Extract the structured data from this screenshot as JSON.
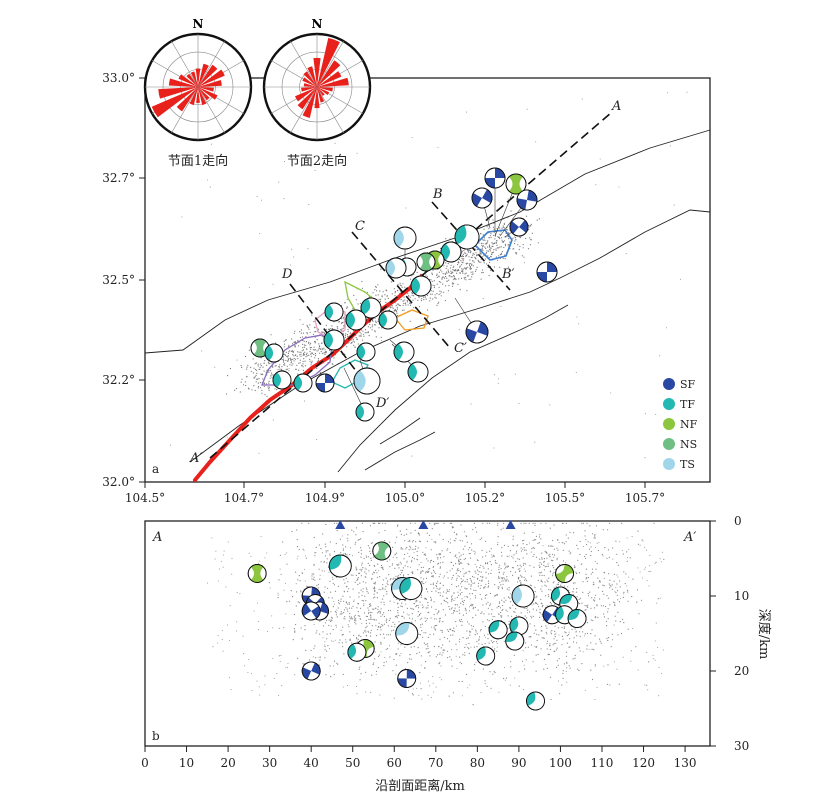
{
  "chart_data": [
    {
      "type": "map",
      "panel": "a",
      "x_ticks": [
        "104.5°",
        "104.7°",
        "104.9°",
        "105.0°",
        "105.2°",
        "105.5°",
        "105.7°"
      ],
      "y_ticks": [
        "33.0°",
        "32.7°",
        "32.5°",
        "32.2°",
        "32.0°"
      ],
      "profiles": [
        {
          "start": "A",
          "end": "A′"
        },
        {
          "start": "B",
          "end": "B′"
        },
        {
          "start": "C",
          "end": "C′"
        },
        {
          "start": "D",
          "end": "D′"
        }
      ],
      "rose_diagrams": [
        {
          "north": "N",
          "caption": "节面1走向",
          "petals": [
            {
              "az": 0,
              "r": 0.35
            },
            {
              "az": 20,
              "r": 0.45
            },
            {
              "az": 40,
              "r": 0.5
            },
            {
              "az": 60,
              "r": 0.55
            },
            {
              "az": 80,
              "r": 0.45
            },
            {
              "az": 100,
              "r": 0.3
            },
            {
              "az": 120,
              "r": 0.4
            },
            {
              "az": 140,
              "r": 0.3
            },
            {
              "az": 160,
              "r": 0.35
            },
            {
              "az": 180,
              "r": 0.3
            },
            {
              "az": 200,
              "r": 0.35
            },
            {
              "az": 220,
              "r": 0.55
            },
            {
              "az": 240,
              "r": 0.95
            },
            {
              "az": 260,
              "r": 0.75
            },
            {
              "az": 280,
              "r": 0.55
            },
            {
              "az": 300,
              "r": 0.4
            },
            {
              "az": 320,
              "r": 0.3
            },
            {
              "az": 340,
              "r": 0.3
            }
          ]
        },
        {
          "north": "N",
          "caption": "节面2走向",
          "petals": [
            {
              "az": 0,
              "r": 0.55
            },
            {
              "az": 20,
              "r": 0.95
            },
            {
              "az": 40,
              "r": 0.6
            },
            {
              "az": 60,
              "r": 0.5
            },
            {
              "az": 80,
              "r": 0.6
            },
            {
              "az": 100,
              "r": 0.3
            },
            {
              "az": 120,
              "r": 0.25
            },
            {
              "az": 140,
              "r": 0.2
            },
            {
              "az": 160,
              "r": 0.3
            },
            {
              "az": 180,
              "r": 0.4
            },
            {
              "az": 200,
              "r": 0.6
            },
            {
              "az": 220,
              "r": 0.5
            },
            {
              "az": 240,
              "r": 0.45
            },
            {
              "az": 260,
              "r": 0.3
            },
            {
              "az": 280,
              "r": 0.25
            },
            {
              "az": 300,
              "r": 0.3
            },
            {
              "az": 320,
              "r": 0.35
            },
            {
              "az": 340,
              "r": 0.4
            }
          ]
        }
      ],
      "legend": [
        {
          "code": "SF",
          "color": "#2948a3"
        },
        {
          "code": "TF",
          "color": "#23b8b1"
        },
        {
          "code": "NF",
          "color": "#8cc63f"
        },
        {
          "code": "NS",
          "color": "#6fbf82"
        },
        {
          "code": "TS",
          "color": "#9fd6ea"
        }
      ],
      "legend_position": "bottom-right",
      "rupture_color": "#e8211c"
    },
    {
      "type": "scatter",
      "panel": "b",
      "x_label": "沿剖面距离/km",
      "y_label": "深度/km",
      "start_label": "A",
      "end_label": "A′",
      "x_ticks": [
        "0",
        "10",
        "20",
        "30",
        "40",
        "50",
        "60",
        "70",
        "80",
        "90",
        "100",
        "110",
        "120",
        "130"
      ],
      "y_ticks": [
        "0",
        "10",
        "20",
        "30"
      ],
      "x_range": [
        0,
        136
      ],
      "y_range": [
        0,
        30
      ],
      "y_inverted": true,
      "stations_km": [
        47,
        67,
        88
      ],
      "mechanisms": [
        {
          "x": 27,
          "y": 7,
          "type": "NF"
        },
        {
          "x": 47,
          "y": 6,
          "type": "TF"
        },
        {
          "x": 57,
          "y": 4,
          "type": "NS"
        },
        {
          "x": 62,
          "y": 9,
          "type": "TS"
        },
        {
          "x": 64,
          "y": 9,
          "type": "TF"
        },
        {
          "x": 40,
          "y": 10,
          "type": "SF"
        },
        {
          "x": 41,
          "y": 11,
          "type": "SF"
        },
        {
          "x": 42,
          "y": 12,
          "type": "SF"
        },
        {
          "x": 40,
          "y": 12,
          "type": "SF"
        },
        {
          "x": 53,
          "y": 17,
          "type": "NF"
        },
        {
          "x": 51,
          "y": 17.5,
          "type": "TF"
        },
        {
          "x": 63,
          "y": 15,
          "type": "TS"
        },
        {
          "x": 40,
          "y": 20,
          "type": "SF"
        },
        {
          "x": 63,
          "y": 21,
          "type": "SF"
        },
        {
          "x": 85,
          "y": 14.5,
          "type": "TF"
        },
        {
          "x": 90,
          "y": 14,
          "type": "TF"
        },
        {
          "x": 89,
          "y": 16,
          "type": "TF"
        },
        {
          "x": 82,
          "y": 18,
          "type": "TF"
        },
        {
          "x": 91,
          "y": 10,
          "type": "TS"
        },
        {
          "x": 101,
          "y": 7,
          "type": "NF"
        },
        {
          "x": 100,
          "y": 10,
          "type": "TF"
        },
        {
          "x": 102,
          "y": 11,
          "type": "TF"
        },
        {
          "x": 98,
          "y": 12.5,
          "type": "SF"
        },
        {
          "x": 101,
          "y": 12.5,
          "type": "TF"
        },
        {
          "x": 104,
          "y": 13,
          "type": "TF"
        },
        {
          "x": 94,
          "y": 24,
          "type": "TF"
        }
      ]
    }
  ]
}
